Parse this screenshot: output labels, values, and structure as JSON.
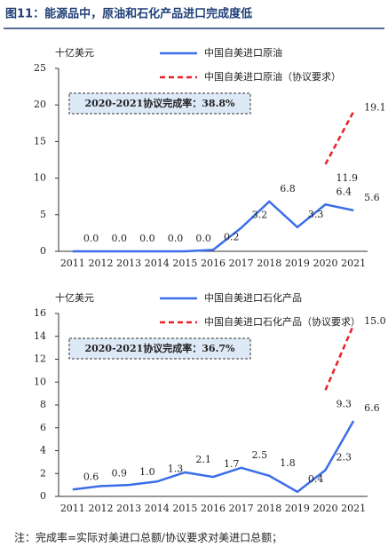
{
  "title": "图11：能源品中，原油和石化产品进口完成度低",
  "note": "注：完成率=实际对美进口总额/协议要求对美进口总额；",
  "chart_data": [
    {
      "type": "line",
      "y_label": "十亿美元",
      "annotation": "2020-2021协议完成率：38.8%",
      "categories": [
        "2011",
        "2012",
        "2013",
        "2014",
        "2015",
        "2016",
        "2017",
        "2018",
        "2019",
        "2020",
        "2021"
      ],
      "ylim": [
        0,
        25
      ],
      "yticks": [
        0,
        5,
        10,
        15,
        20,
        25
      ],
      "series": [
        {
          "name": "中国自美进口原油",
          "color": "#3b6ee8",
          "dashed": false,
          "values": [
            0,
            0,
            0,
            0,
            0,
            0.2,
            3.2,
            6.8,
            3.3,
            6.4,
            5.6
          ],
          "value_labels": [
            "0.0",
            "0.0",
            "0.0",
            "0.0",
            "0.0",
            "0.2",
            "3.2",
            "6.8",
            "3.3",
            "6.4",
            "5.6"
          ]
        },
        {
          "name": "中国自美进口原油（协议要求）",
          "color": "#e82028",
          "dashed": true,
          "values": [
            null,
            null,
            null,
            null,
            null,
            null,
            null,
            null,
            null,
            11.9,
            19.1
          ],
          "value_labels": [
            null,
            null,
            null,
            null,
            null,
            null,
            null,
            null,
            null,
            "11.9",
            "19.1"
          ]
        }
      ]
    },
    {
      "type": "line",
      "y_label": "十亿美元",
      "annotation": "2020-2021协议完成率：36.7%",
      "categories": [
        "2011",
        "2012",
        "2013",
        "2014",
        "2015",
        "2016",
        "2017",
        "2018",
        "2019",
        "2020",
        "2021"
      ],
      "ylim": [
        0,
        16
      ],
      "yticks": [
        0,
        2,
        4,
        6,
        8,
        10,
        12,
        14,
        16
      ],
      "series": [
        {
          "name": "中国自美进口石化产品",
          "color": "#3b6ee8",
          "dashed": false,
          "values": [
            0.6,
            0.9,
            1.0,
            1.3,
            2.1,
            1.7,
            2.5,
            1.8,
            0.4,
            2.3,
            6.6
          ],
          "value_labels": [
            "0.6",
            "0.9",
            "1.0",
            "1.3",
            "2.1",
            "1.7",
            "2.5",
            "1.8",
            "0.4",
            "2.3",
            "6.6"
          ]
        },
        {
          "name": "中国自美进口石化产品（协议要求）",
          "color": "#e82028",
          "dashed": true,
          "values": [
            null,
            null,
            null,
            null,
            null,
            null,
            null,
            null,
            null,
            9.3,
            15.0
          ],
          "value_labels": [
            null,
            null,
            null,
            null,
            null,
            null,
            null,
            null,
            null,
            "9.3",
            "15.0"
          ]
        }
      ]
    }
  ]
}
